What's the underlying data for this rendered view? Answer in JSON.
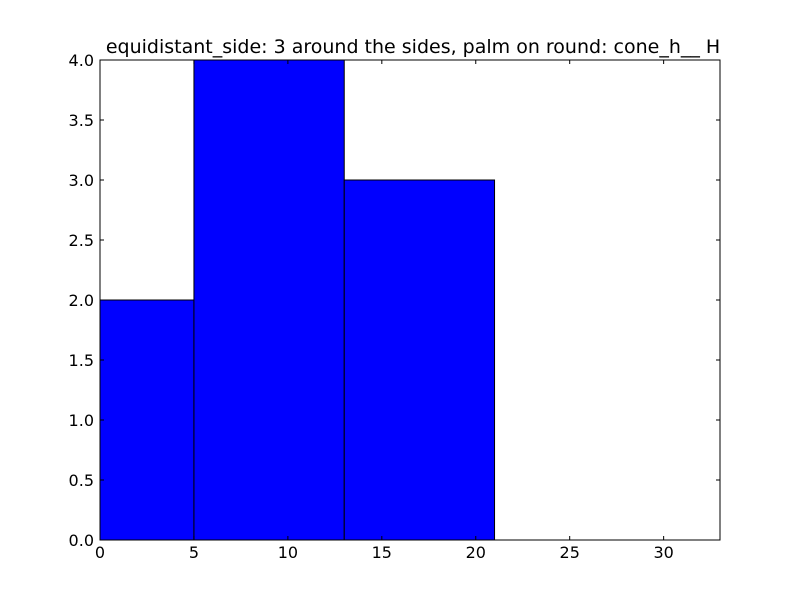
{
  "chart_data": {
    "type": "bar",
    "title": "equidistant_side: 3 around the sides, palm on round: cone_h__ H",
    "xlabel": "",
    "ylabel": "",
    "bins": [
      {
        "x0": 0,
        "x1": 5,
        "value": 2
      },
      {
        "x0": 5,
        "x1": 13,
        "value": 4
      },
      {
        "x0": 13,
        "x1": 21,
        "value": 3
      }
    ],
    "xlim": [
      0,
      33
    ],
    "ylim": [
      0,
      4
    ],
    "xticks": [
      "0",
      "5",
      "10",
      "15",
      "20",
      "25",
      "30"
    ],
    "yticks": [
      "0.0",
      "0.5",
      "1.0",
      "1.5",
      "2.0",
      "2.5",
      "3.0",
      "3.5",
      "4.0"
    ],
    "bar_color": "#0000ff",
    "edge_color": "#000000",
    "grid": false,
    "legend": "none"
  }
}
